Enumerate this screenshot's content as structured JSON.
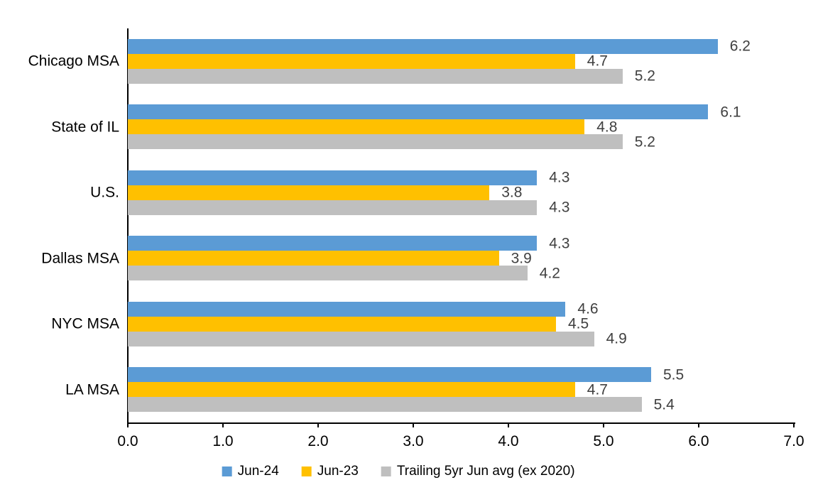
{
  "chart_data": {
    "type": "bar",
    "orientation": "horizontal",
    "title": "",
    "categories": [
      "Chicago MSA",
      "State of IL",
      "U.S.",
      "Dallas MSA",
      "NYC MSA",
      "LA MSA"
    ],
    "series": [
      {
        "name": "Jun-24",
        "color": "#5B9BD5",
        "values": [
          6.2,
          6.1,
          4.3,
          4.3,
          4.6,
          5.5
        ]
      },
      {
        "name": "Jun-23",
        "color": "#FFC000",
        "values": [
          4.7,
          4.8,
          3.8,
          3.9,
          4.5,
          4.7
        ]
      },
      {
        "name": "Trailing 5yr Jun avg (ex 2020)",
        "color": "#BFBFBF",
        "values": [
          5.2,
          5.2,
          4.3,
          4.2,
          4.9,
          5.4
        ]
      }
    ],
    "x_axis": {
      "min": 0,
      "max": 7,
      "tick_interval": 1,
      "tick_labels": [
        "0.0",
        "1.0",
        "2.0",
        "3.0",
        "4.0",
        "5.0",
        "6.0",
        "7.0"
      ]
    },
    "data_labels_shown": true,
    "data_label_decimals": 1,
    "data_label_color": "#404040",
    "axis_color": "#000000",
    "legend_position": "bottom",
    "grid": false
  }
}
